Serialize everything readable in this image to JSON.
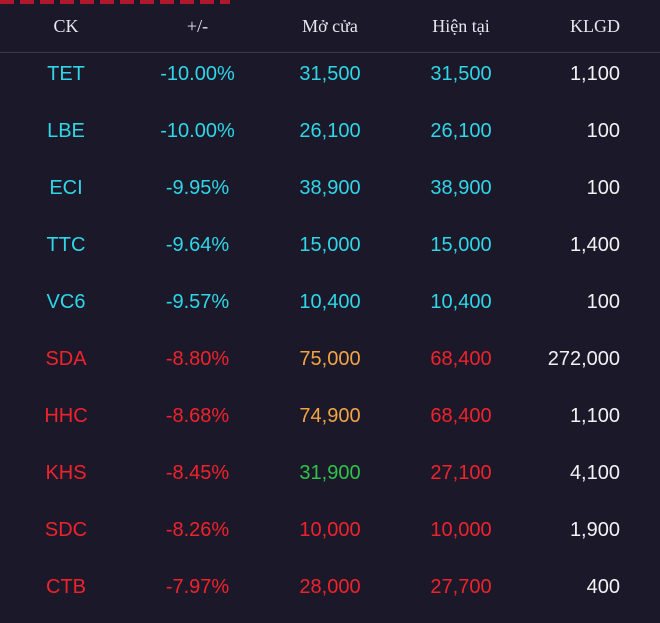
{
  "header": {
    "ck": "CK",
    "change": "+/-",
    "open": "Mở cửa",
    "current": "Hiện tại",
    "volume": "KLGD"
  },
  "colors": {
    "floor": "#2fd6e8",
    "down": "#f0222c",
    "ref": "#f2a444",
    "up": "#2fc34a",
    "neutral": "#f2f2f2"
  },
  "rows": [
    {
      "ck": "TET",
      "change": "-10.00%",
      "open": "31,500",
      "current": "31,500",
      "volume": "1,100",
      "ck_color": "floor",
      "change_color": "floor",
      "open_color": "floor",
      "current_color": "floor"
    },
    {
      "ck": "LBE",
      "change": "-10.00%",
      "open": "26,100",
      "current": "26,100",
      "volume": "100",
      "ck_color": "floor",
      "change_color": "floor",
      "open_color": "floor",
      "current_color": "floor"
    },
    {
      "ck": "ECI",
      "change": "-9.95%",
      "open": "38,900",
      "current": "38,900",
      "volume": "100",
      "ck_color": "floor",
      "change_color": "floor",
      "open_color": "floor",
      "current_color": "floor"
    },
    {
      "ck": "TTC",
      "change": "-9.64%",
      "open": "15,000",
      "current": "15,000",
      "volume": "1,400",
      "ck_color": "floor",
      "change_color": "floor",
      "open_color": "floor",
      "current_color": "floor"
    },
    {
      "ck": "VC6",
      "change": "-9.57%",
      "open": "10,400",
      "current": "10,400",
      "volume": "100",
      "ck_color": "floor",
      "change_color": "floor",
      "open_color": "floor",
      "current_color": "floor"
    },
    {
      "ck": "SDA",
      "change": "-8.80%",
      "open": "75,000",
      "current": "68,400",
      "volume": "272,000",
      "ck_color": "down",
      "change_color": "down",
      "open_color": "ref",
      "current_color": "down"
    },
    {
      "ck": "HHC",
      "change": "-8.68%",
      "open": "74,900",
      "current": "68,400",
      "volume": "1,100",
      "ck_color": "down",
      "change_color": "down",
      "open_color": "ref",
      "current_color": "down"
    },
    {
      "ck": "KHS",
      "change": "-8.45%",
      "open": "31,900",
      "current": "27,100",
      "volume": "4,100",
      "ck_color": "down",
      "change_color": "down",
      "open_color": "up",
      "current_color": "down"
    },
    {
      "ck": "SDC",
      "change": "-8.26%",
      "open": "10,000",
      "current": "10,000",
      "volume": "1,900",
      "ck_color": "down",
      "change_color": "down",
      "open_color": "down",
      "current_color": "down"
    },
    {
      "ck": "CTB",
      "change": "-7.97%",
      "open": "28,000",
      "current": "27,700",
      "volume": "400",
      "ck_color": "down",
      "change_color": "down",
      "open_color": "down",
      "current_color": "down"
    }
  ]
}
